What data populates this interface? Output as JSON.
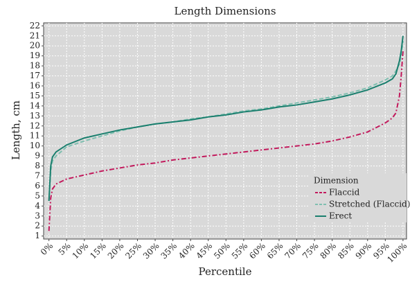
{
  "chart_data": {
    "type": "line",
    "title": "Length Dimensions",
    "x_label": "Percentile",
    "y_label": "Length, cm",
    "x": [
      0,
      0.5,
      1,
      2,
      5,
      10,
      15,
      20,
      25,
      30,
      35,
      40,
      45,
      50,
      55,
      60,
      65,
      70,
      75,
      80,
      85,
      90,
      95,
      97,
      98,
      99,
      99.5,
      100
    ],
    "series": [
      {
        "name": "Flaccid",
        "color": "#c2185b",
        "dash": "dashdot",
        "values": [
          1.5,
          4.8,
          5.7,
          6.2,
          6.7,
          7.1,
          7.5,
          7.8,
          8.1,
          8.3,
          8.6,
          8.8,
          9.0,
          9.2,
          9.4,
          9.6,
          9.8,
          10.0,
          10.2,
          10.5,
          10.9,
          11.4,
          12.3,
          12.8,
          13.3,
          15,
          17,
          19.5
        ]
      },
      {
        "name": "Stretched (Flaccid)",
        "color": "#7fbfb0",
        "dash": "dash",
        "values": [
          4.5,
          7.5,
          8.5,
          9.0,
          9.9,
          10.5,
          11.0,
          11.5,
          11.9,
          12.2,
          12.4,
          12.7,
          12.9,
          13.2,
          13.5,
          13.7,
          14.0,
          14.3,
          14.6,
          14.9,
          15.3,
          15.8,
          16.6,
          17.0,
          17.5,
          18.2,
          19,
          20.5
        ]
      },
      {
        "name": "Erect",
        "color": "#1a7f6e",
        "dash": "solid",
        "values": [
          4.5,
          8.0,
          8.9,
          9.4,
          10.1,
          10.8,
          11.2,
          11.6,
          11.9,
          12.2,
          12.4,
          12.6,
          12.9,
          13.1,
          13.4,
          13.6,
          13.9,
          14.1,
          14.4,
          14.7,
          15.1,
          15.6,
          16.3,
          16.7,
          17.2,
          18.5,
          19.5,
          21
        ]
      }
    ],
    "legend_title": "Dimension",
    "legend_position": "lower right",
    "xlim": [
      -1.5,
      101
    ],
    "ylim": [
      0.7,
      22.3
    ],
    "xticks": [
      {
        "value": 0,
        "label": "0%"
      },
      {
        "value": 5,
        "label": "5%"
      },
      {
        "value": 10,
        "label": "10%"
      },
      {
        "value": 15,
        "label": "15%"
      },
      {
        "value": 20,
        "label": "20%"
      },
      {
        "value": 25,
        "label": "25%"
      },
      {
        "value": 30,
        "label": "30%"
      },
      {
        "value": 35,
        "label": "35%"
      },
      {
        "value": 40,
        "label": "40%"
      },
      {
        "value": 45,
        "label": "45%"
      },
      {
        "value": 50,
        "label": "50%"
      },
      {
        "value": 55,
        "label": "55%"
      },
      {
        "value": 60,
        "label": "60%"
      },
      {
        "value": 65,
        "label": "65%"
      },
      {
        "value": 70,
        "label": "70%"
      },
      {
        "value": 75,
        "label": "75%"
      },
      {
        "value": 80,
        "label": "80%"
      },
      {
        "value": 85,
        "label": "85%"
      },
      {
        "value": 90,
        "label": "90%"
      },
      {
        "value": 95,
        "label": "95%"
      },
      {
        "value": 100,
        "label": "100%"
      }
    ],
    "yticks": [
      1,
      2,
      3,
      4,
      5,
      6,
      7,
      8,
      9,
      10,
      11,
      12,
      13,
      14,
      15,
      16,
      17,
      18,
      19,
      20,
      21,
      22
    ],
    "grid": true,
    "background": "#d9d9d9"
  }
}
